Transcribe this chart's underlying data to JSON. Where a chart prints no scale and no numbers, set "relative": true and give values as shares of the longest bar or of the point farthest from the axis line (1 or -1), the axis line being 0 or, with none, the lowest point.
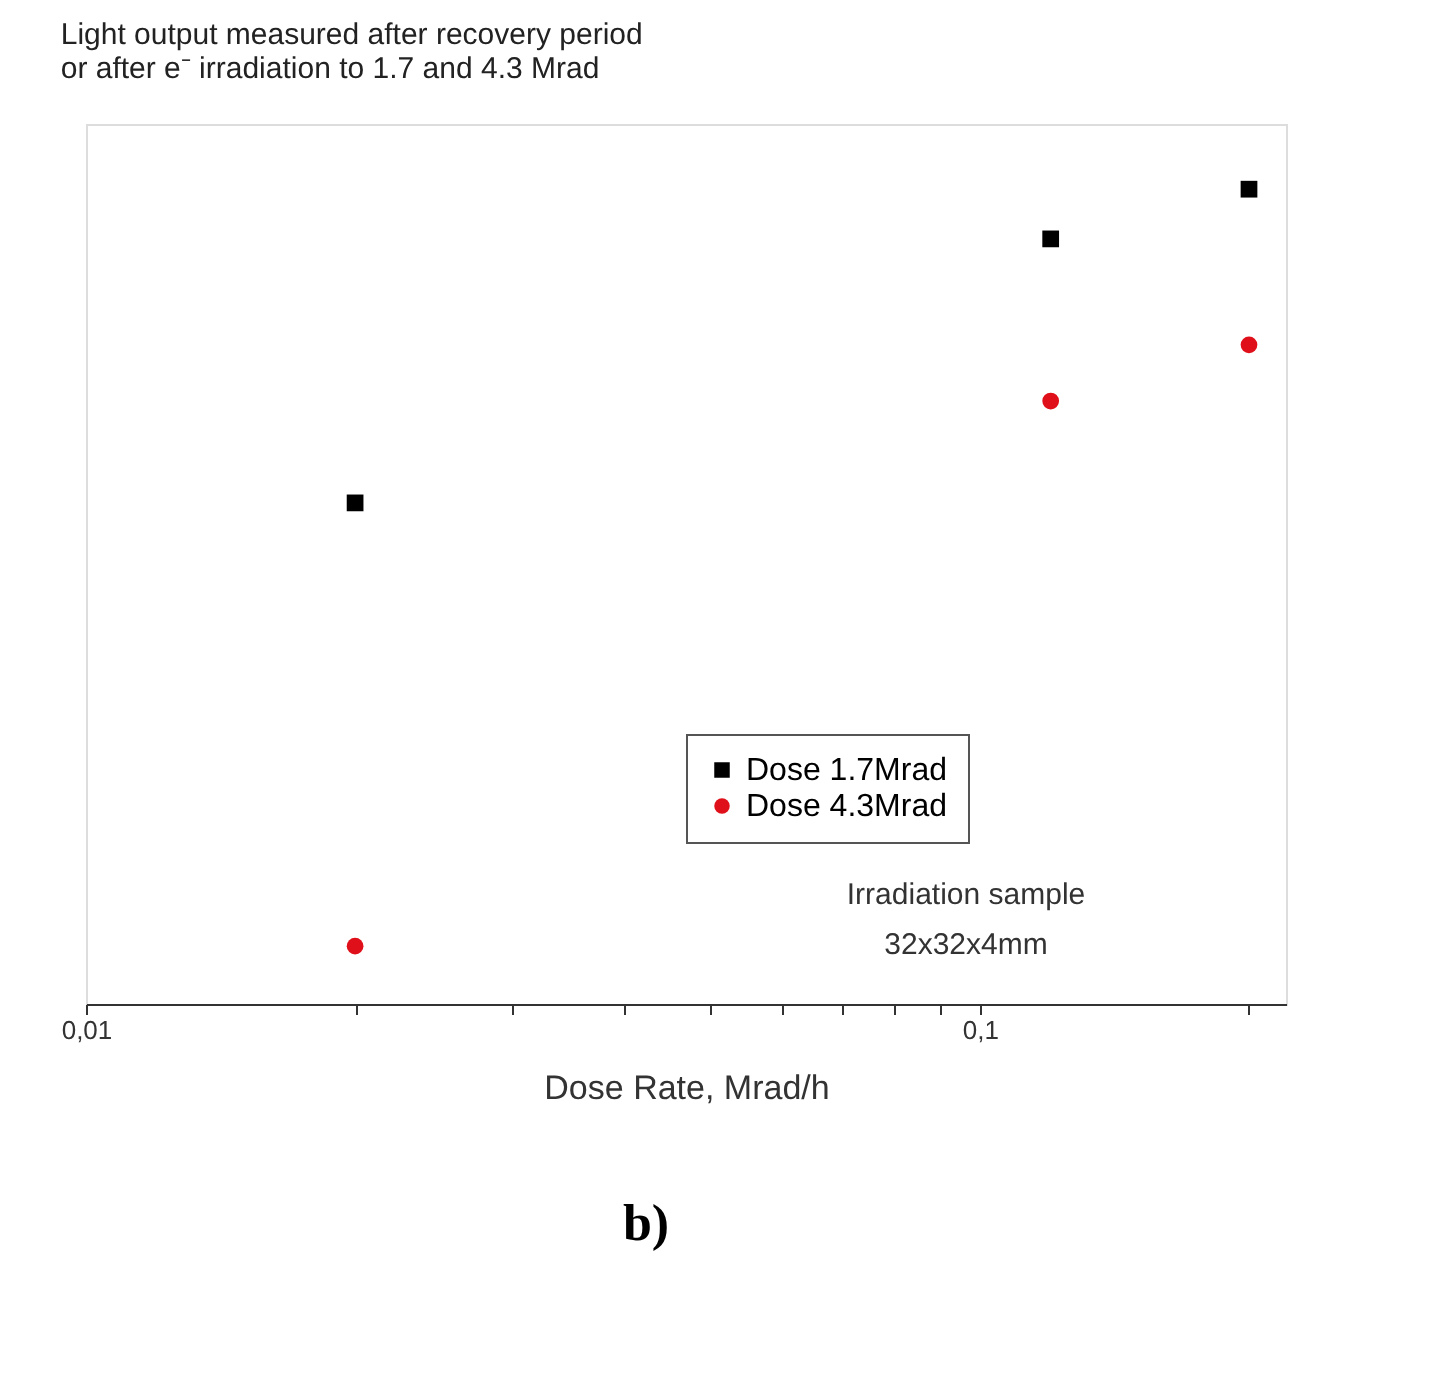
{
  "chart_data": {
    "type": "scatter",
    "title": [
      "Light output measured after recovery period",
      "or after e⁻ irradiation to 1.7 and 4.3 Mrad"
    ],
    "xlabel": "Dose Rate, Mrad/h",
    "x": [
      0.02,
      0.12,
      0.2
    ],
    "xlim": [
      0.01,
      0.22
    ],
    "xticks": [
      {
        "value": 0.01,
        "label": "0,01"
      },
      {
        "value": 0.02,
        "label": null
      },
      {
        "value": 0.03,
        "label": null
      },
      {
        "value": 0.04,
        "label": null
      },
      {
        "value": 0.05,
        "label": null
      },
      {
        "value": 0.06,
        "label": null
      },
      {
        "value": 0.07,
        "label": null
      },
      {
        "value": 0.08,
        "label": null
      },
      {
        "value": 0.09,
        "label": null
      },
      {
        "value": 0.1,
        "label": "0,1"
      },
      {
        "value": 0.2,
        "label": null
      }
    ],
    "log": "x",
    "relative": true,
    "grid": false,
    "legend": "bottom right",
    "series": [
      {
        "name": "Dose 1.7Mrad",
        "color": "#000000",
        "marker": "square",
        "values": [
          0.615,
          0.939,
          1
        ]
      },
      {
        "name": "Dose 4.3Mrad",
        "color": "#e0101a",
        "marker": "circle",
        "values": [
          0.071,
          0.74,
          0.809
        ]
      }
    ],
    "annotations": [
      "Irradiation sample",
      "32x32x4mm",
      "b)"
    ]
  }
}
